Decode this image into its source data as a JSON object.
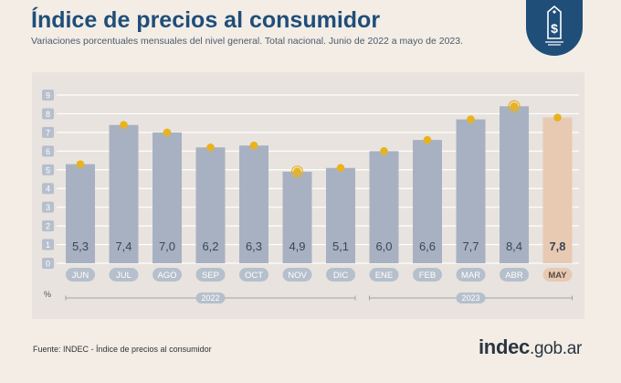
{
  "header": {
    "title": "Índice de precios al consumidor",
    "subtitle": "Variaciones porcentuales mensuales del nivel general. Total nacional. Junio de 2022 a mayo de 2023."
  },
  "badge": {
    "icon": "price-tag-dollar-icon",
    "symbol": "$"
  },
  "footer": {
    "source": "Fuente: INDEC - Índice de precios al consumidor",
    "brand_main": "indec",
    "brand_domain": ".gob.ar"
  },
  "colors": {
    "bar": "#a7b1c2",
    "bar_highlight": "#e8c9b2",
    "marker": "#e9b21f",
    "title": "#1f4e79",
    "label_pill": "#b6bfcc",
    "label_pill_highlight": "#e8c9b2"
  },
  "chart_data": {
    "type": "bar",
    "unit_label": "%",
    "categories": [
      "JUN",
      "JUL",
      "AGO",
      "SEP",
      "OCT",
      "NOV",
      "DIC",
      "ENE",
      "FEB",
      "MAR",
      "ABR",
      "MAY"
    ],
    "values": [
      5.3,
      7.4,
      7.0,
      6.2,
      6.3,
      4.9,
      5.1,
      6.0,
      6.6,
      7.7,
      8.4,
      7.8
    ],
    "value_labels": [
      "5,3",
      "7,4",
      "7,0",
      "6,2",
      "6,3",
      "4,9",
      "5,1",
      "6,0",
      "6,6",
      "7,7",
      "8,4",
      "7,8"
    ],
    "highlight_index": 11,
    "ring_markers": [
      5,
      10
    ],
    "y_ticks": [
      "0",
      "1",
      "2",
      "3",
      "4",
      "5",
      "6",
      "7",
      "8",
      "9"
    ],
    "ylim": [
      0,
      9
    ],
    "grid": true,
    "years": [
      {
        "label": "2022",
        "from": 0,
        "to": 6
      },
      {
        "label": "2023",
        "from": 7,
        "to": 11
      }
    ]
  }
}
